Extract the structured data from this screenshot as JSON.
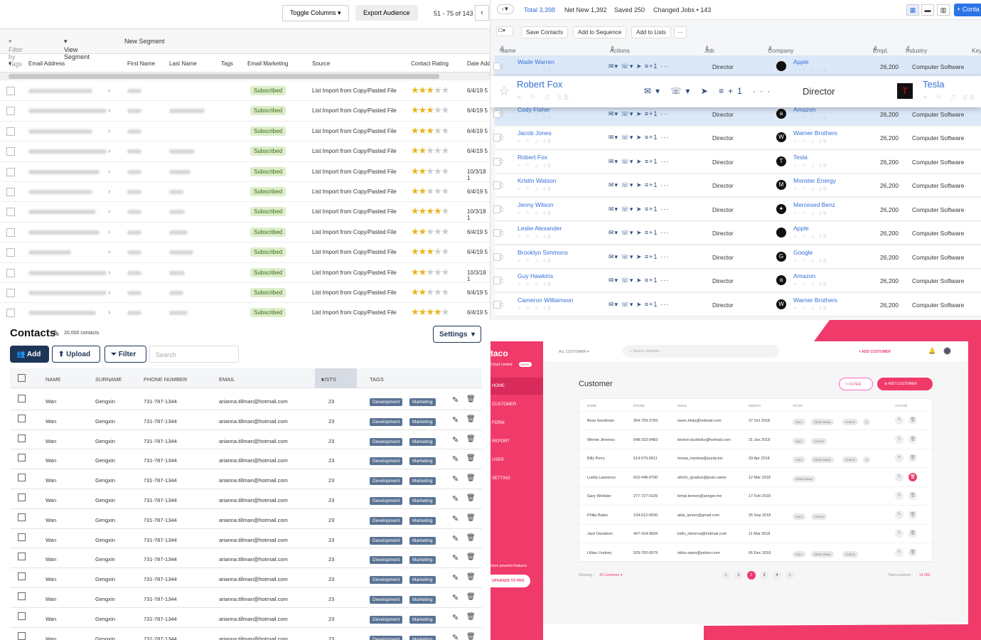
{
  "q1": {
    "toggle_columns": "Toggle Columns",
    "export_audience": "Export Audience",
    "pagination": "51 - 75 of 143",
    "filter_by_tags": "Filter by Tags",
    "view_segment": "View Segment",
    "new_segment": "New Segment",
    "columns": [
      "Email Address",
      "First Name",
      "Last Name",
      "Tags",
      "Email Marketing",
      "Source",
      "Contact Rating",
      "Date Add"
    ],
    "rows": [
      {
        "status": "Subscribed",
        "source": "List Import from Copy/Pasted File",
        "stars": 3,
        "date": "6/4/19 5"
      },
      {
        "status": "Subscribed",
        "source": "List Import from Copy/Pasted File",
        "stars": 3,
        "date": "6/4/19 5"
      },
      {
        "status": "Subscribed",
        "source": "List Import from Copy/Pasted File",
        "stars": 3,
        "date": "6/4/19 5"
      },
      {
        "status": "Subscribed",
        "source": "List Import from Copy/Pasted File",
        "stars": 2,
        "date": "6/4/19 5"
      },
      {
        "status": "Subscribed",
        "source": "List Import from Copy/Pasted File",
        "stars": 2,
        "date": "10/3/18 1"
      },
      {
        "status": "Subscribed",
        "source": "List Import from Copy/Pasted File",
        "stars": 2,
        "date": "6/4/19 5"
      },
      {
        "status": "Subscribed",
        "source": "List Import from Copy/Pasted File",
        "stars": 4,
        "date": "10/3/18 1"
      },
      {
        "status": "Subscribed",
        "source": "List Import from Copy/Pasted File",
        "stars": 2,
        "date": "6/4/19 5"
      },
      {
        "status": "Subscribed",
        "source": "List Import from Copy/Pasted File",
        "stars": 3,
        "date": "6/4/19 5"
      },
      {
        "status": "Subscribed",
        "source": "List Import from Copy/Pasted File",
        "stars": 2,
        "date": "10/3/18 1"
      },
      {
        "status": "Subscribed",
        "source": "List Import from Copy/Pasted File",
        "stars": 2,
        "date": "6/4/19 5"
      },
      {
        "status": "Subscribed",
        "source": "List Import from Copy/Pasted File",
        "stars": 4,
        "date": "6/4/19 5"
      }
    ]
  },
  "q2": {
    "total": "Total 3,398",
    "net_new": "Net New 1,392",
    "saved": "Saved 250",
    "changed_jobs": "Changed Jobs • 143",
    "add_contact": "+ Conta",
    "save_contacts": "Save Contacts",
    "add_to_sequence": "Add to Sequence",
    "add_to_lists": "Add to Lists",
    "columns": [
      "Name",
      "Actions",
      "Job Title",
      "Company",
      "Empl.",
      "Industry",
      "Keyw"
    ],
    "highlight": {
      "name": "Robert Fox",
      "title": "Director",
      "company": "Tesla"
    },
    "rows": [
      {
        "name": "Wade Warren",
        "title": "Director",
        "company": "Apple",
        "logo": "",
        "emp": "26,200",
        "industry": "Computer Software",
        "hl": true
      },
      {
        "name": "Cody Fisher",
        "title": "Director",
        "company": "Amazon",
        "logo": "a",
        "emp": "26,200",
        "industry": "Computer Software",
        "hl": true
      },
      {
        "name": "Jacob Jones",
        "title": "Director",
        "company": "Warner Brothers",
        "logo": "W",
        "emp": "26,200",
        "industry": "Computer Software",
        "hl": false
      },
      {
        "name": "Robert Fox",
        "title": "Director",
        "company": "Tesla",
        "logo": "T",
        "emp": "26,200",
        "industry": "Computer Software",
        "hl": false
      },
      {
        "name": "Kristin Watson",
        "title": "Director",
        "company": "Monster Energy",
        "logo": "M",
        "emp": "26,200",
        "industry": "Computer Software",
        "hl": false
      },
      {
        "name": "Jenny Wilson",
        "title": "Director",
        "company": "Mercesed Benz",
        "logo": "✦",
        "emp": "26,200",
        "industry": "Computer Software",
        "hl": false
      },
      {
        "name": "Leslie Alexander",
        "title": "Director",
        "company": "Apple",
        "logo": "",
        "emp": "26,200",
        "industry": "Computer Software",
        "hl": false
      },
      {
        "name": "Brooklyn Simmons",
        "title": "Director",
        "company": "Google",
        "logo": "G",
        "emp": "26,200",
        "industry": "Computer Software",
        "hl": false
      },
      {
        "name": "Guy Hawkins",
        "title": "Director",
        "company": "Amazon",
        "logo": "a",
        "emp": "26,200",
        "industry": "Computer Software",
        "hl": false
      },
      {
        "name": "Cameron Williamson",
        "title": "Director",
        "company": "Warner Brothers",
        "logo": "W",
        "emp": "26,200",
        "industry": "Computer Software",
        "hl": false
      }
    ]
  },
  "q3": {
    "title": "Contacts",
    "count": "20,000 contacts",
    "settings": "Settings",
    "add": "Add",
    "upload": "Upload",
    "filter": "Filter",
    "search_placeholder": "Search",
    "columns": [
      "NAME",
      "SURNAME",
      "PHONE NUMBER",
      "EMAIL",
      "LISTS",
      "TAGS"
    ],
    "row": {
      "name": "Wan",
      "surname": "Gengxin",
      "phone": "731-787-1344",
      "email": "arianna.tillman@hotmail.com",
      "lists": "23",
      "tag1": "Development",
      "tag2": "Marketing"
    }
  },
  "q4": {
    "brand": "taco",
    "company": "Cloud Limited",
    "plan": "BASIC",
    "nav": [
      "HOME",
      "CUSTOMER",
      "FORM",
      "REPORT",
      "USER",
      "SETTING"
    ],
    "more_features": "more powerful features",
    "upgrade": "UPGRADE TO PRO",
    "all_customer": "ALL CUSTOMER",
    "search_placeholder": "Search customer",
    "add_customer_top": "+ ADD CUSTOMER",
    "page_title": "Customer",
    "filter": "FILTER",
    "add_customer": "ADD CUSTOMER",
    "columns": [
      "NAME",
      "PHONE",
      "EMAIL",
      "MODIFY",
      "TO DO",
      "ACTION"
    ],
    "rows": [
      {
        "name": "Bess Goodman",
        "phone": "364-759-3783",
        "email": "owen.hintz@hotmail.com",
        "date": "27 Oct 2018"
      },
      {
        "name": "Winnie Jimenez",
        "phone": "648-333-9483",
        "email": "benton.kuoltwitz@hotmail.com",
        "date": "31 Jan 2018"
      },
      {
        "name": "Billy Perry",
        "phone": "514-579-9511",
        "email": "hosea_trantow@purdy.biz",
        "date": "20 Apr 2018"
      },
      {
        "name": "Luella Lawrence",
        "phone": "816-448-9790",
        "email": "ullrich_ignatius@josie.name",
        "date": "12 Mar 2018"
      },
      {
        "name": "Gary Webster",
        "phone": "277-727-0226",
        "email": "lempi.lennon@senger.me",
        "date": "17 Feb 2018"
      },
      {
        "name": "Philip Bates",
        "phone": "134-612-6630",
        "email": "aida_larson@gmail.com",
        "date": "25 Sep 2018"
      },
      {
        "name": "Jack Davidson",
        "phone": "407-164-9834",
        "email": "kirlin_minerva@hotmail.com",
        "date": "11 Mar 2018"
      },
      {
        "name": "Lillian Lindsey",
        "phone": "529-782-6579",
        "email": "nikko.sipes@yahoo.com",
        "date": "06 Dec 2018"
      }
    ],
    "showing_label": "Showing :",
    "showing_value": "30 Customer",
    "pages": [
      "1",
      "2",
      "3",
      "4"
    ],
    "total_label": "Total customer :",
    "total_value": "14,250",
    "accent": "#f03a6a"
  }
}
